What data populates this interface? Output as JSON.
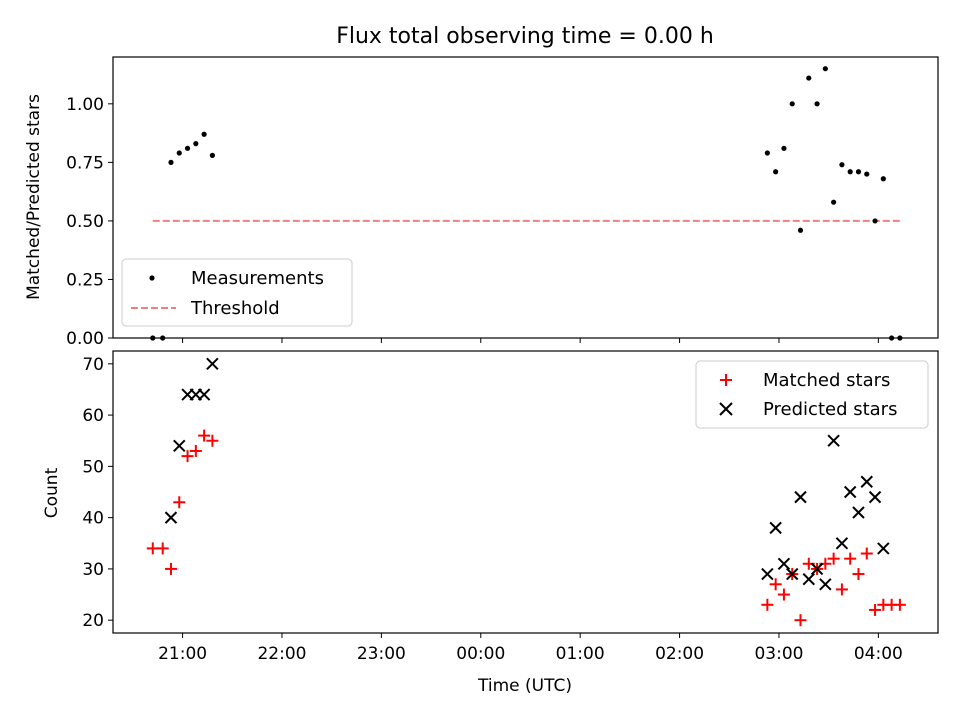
{
  "chart_data": [
    {
      "type": "scatter",
      "title": "Flux total observing time = 0.00 h",
      "xlabel": "",
      "ylabel": "Matched/Predicted stars",
      "ylim": [
        0,
        1.2
      ],
      "xlim": [
        "20:18",
        "04:36"
      ],
      "yticks": [
        "0.00",
        "0.25",
        "0.50",
        "0.75",
        "1.00"
      ],
      "legend": "lower-left",
      "series": [
        {
          "name": "Measurements",
          "color": "#000000",
          "marker": "dot",
          "x": [
            "20:42",
            "20:48",
            "20:53",
            "20:58",
            "21:03",
            "21:08",
            "21:13",
            "21:18",
            "02:53",
            "02:58",
            "03:03",
            "03:08",
            "03:13",
            "03:18",
            "03:23",
            "03:28",
            "03:33",
            "03:38",
            "03:43",
            "03:48",
            "03:53",
            "03:58",
            "04:03",
            "04:08",
            "04:13"
          ],
          "y": [
            0.0,
            0.0,
            0.75,
            0.79,
            0.81,
            0.83,
            0.87,
            0.78,
            0.79,
            0.71,
            0.81,
            1.0,
            0.46,
            1.11,
            1.0,
            1.15,
            0.58,
            0.74,
            0.71,
            0.71,
            0.7,
            0.5,
            0.68,
            0.0,
            0.0
          ]
        },
        {
          "name": "Threshold",
          "color": "#f08080",
          "style": "dashed",
          "x": [
            "20:42",
            "04:13"
          ],
          "y": [
            0.5,
            0.5
          ]
        }
      ]
    },
    {
      "type": "scatter",
      "title": "",
      "xlabel": "Time (UTC)",
      "ylabel": "Count",
      "ylim": [
        17.5,
        72.5
      ],
      "xlim": [
        "20:18",
        "04:36"
      ],
      "yticks": [
        20,
        30,
        40,
        50,
        60,
        70
      ],
      "xticks": [
        "21:00",
        "22:00",
        "23:00",
        "00:00",
        "01:00",
        "02:00",
        "03:00",
        "04:00"
      ],
      "legend": "upper-right",
      "series": [
        {
          "name": "Matched stars",
          "color": "#ff0000",
          "marker": "plus",
          "x": [
            "20:42",
            "20:48",
            "20:53",
            "20:58",
            "21:03",
            "21:08",
            "21:13",
            "21:18",
            "02:53",
            "02:58",
            "03:03",
            "03:08",
            "03:13",
            "03:18",
            "03:23",
            "03:28",
            "03:33",
            "03:38",
            "03:43",
            "03:48",
            "03:53",
            "03:58",
            "04:03",
            "04:08",
            "04:13"
          ],
          "y": [
            34,
            34,
            30,
            43,
            52,
            53,
            56,
            55,
            23,
            27,
            25,
            29,
            20,
            31,
            30,
            31,
            32,
            26,
            32,
            29,
            33,
            22,
            23,
            23,
            23
          ]
        },
        {
          "name": "Predicted stars",
          "color": "#000000",
          "marker": "x",
          "x": [
            "20:53",
            "20:58",
            "21:03",
            "21:08",
            "21:13",
            "21:18",
            "02:53",
            "02:58",
            "03:03",
            "03:08",
            "03:13",
            "03:18",
            "03:23",
            "03:28",
            "03:33",
            "03:38",
            "03:43",
            "03:48",
            "03:53",
            "03:58",
            "04:03"
          ],
          "y": [
            40,
            54,
            64,
            64,
            64,
            70,
            29,
            38,
            31,
            29,
            44,
            28,
            30,
            27,
            55,
            35,
            45,
            41,
            47,
            44,
            34
          ]
        }
      ]
    }
  ]
}
